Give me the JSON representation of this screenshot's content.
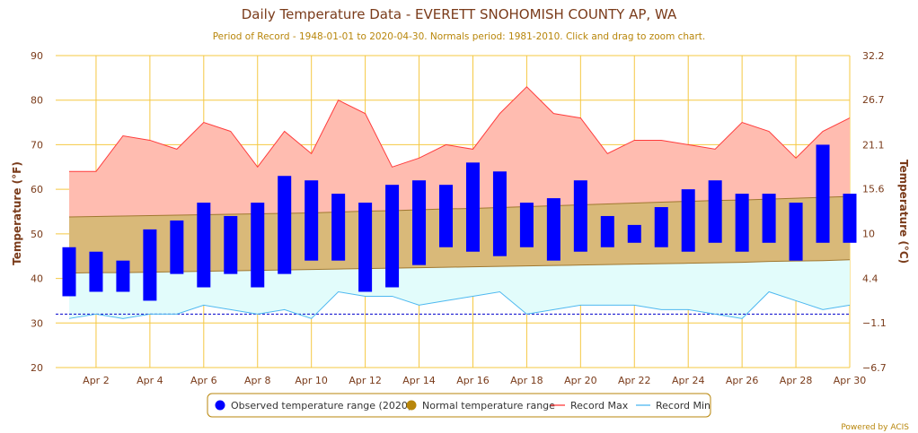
{
  "chart_data": {
    "type": "bar",
    "title": "Daily Temperature Data - EVERETT SNOHOMISH COUNTY AP, WA",
    "subtitle": "Period of Record - 1948-01-01 to 2020-04-30. Normals period: 1981-2010. Click and drag to zoom chart.",
    "ylabel": "Temperature (°F)",
    "ylabel_right": "Temperature (°C)",
    "ylim": [
      20,
      90
    ],
    "yticks": [
      "20",
      "30",
      "40",
      "50",
      "60",
      "70",
      "80",
      "90"
    ],
    "ylim_right": [
      -6.7,
      32.2
    ],
    "yticks_right": [
      "−6.7",
      "−1.1",
      "4.4",
      "10",
      "15.6",
      "21.1",
      "26.7",
      "32.2"
    ],
    "xlim": [
      0.5,
      30
    ],
    "days": [
      1,
      2,
      3,
      4,
      5,
      6,
      7,
      8,
      9,
      10,
      11,
      12,
      13,
      14,
      15,
      16,
      17,
      18,
      19,
      20,
      21,
      22,
      23,
      24,
      25,
      26,
      27,
      28,
      29,
      30
    ],
    "xtick_days": [
      2,
      4,
      6,
      8,
      10,
      12,
      14,
      16,
      18,
      20,
      22,
      24,
      26,
      28,
      30
    ],
    "xticks": [
      "Apr 2",
      "Apr 4",
      "Apr 6",
      "Apr 8",
      "Apr 10",
      "Apr 12",
      "Apr 14",
      "Apr 16",
      "Apr 18",
      "Apr 20",
      "Apr 22",
      "Apr 24",
      "Apr 26",
      "Apr 28",
      "Apr 30"
    ],
    "freezing_line": 32,
    "series": [
      {
        "name": "Observed temperature range (2020)",
        "type": "columnrange",
        "high": [
          47,
          46,
          44,
          51,
          53,
          57,
          54,
          57,
          63,
          62,
          59,
          57,
          61,
          62,
          61,
          66,
          64,
          57,
          58,
          62,
          54,
          52,
          56,
          60,
          62,
          59,
          59,
          57,
          70,
          59
        ],
        "low": [
          36,
          37,
          37,
          35,
          41,
          38,
          41,
          38,
          41,
          44,
          44,
          37,
          38,
          43,
          47,
          46,
          45,
          47,
          44,
          46,
          47,
          48,
          47,
          46,
          48,
          46,
          48,
          44,
          48,
          48
        ]
      },
      {
        "name": "Normal temperature range",
        "type": "arearange",
        "high": [
          53.8,
          53.9,
          54.0,
          54.1,
          54.2,
          54.3,
          54.4,
          54.5,
          54.6,
          54.7,
          54.9,
          55.1,
          55.2,
          55.4,
          55.6,
          55.7,
          55.9,
          56.1,
          56.3,
          56.5,
          56.7,
          56.9,
          57.1,
          57.3,
          57.5,
          57.6,
          57.8,
          58.0,
          58.2,
          58.4
        ],
        "low": [
          41.2,
          41.3,
          41.3,
          41.4,
          41.5,
          41.6,
          41.7,
          41.8,
          41.9,
          42.0,
          42.1,
          42.2,
          42.3,
          42.4,
          42.5,
          42.6,
          42.7,
          42.8,
          42.9,
          43.0,
          43.1,
          43.2,
          43.3,
          43.4,
          43.5,
          43.6,
          43.8,
          43.9,
          44.0,
          44.2
        ]
      },
      {
        "name": "Record Max",
        "type": "line",
        "values": [
          64,
          64,
          72,
          71,
          69,
          75,
          73,
          65,
          73,
          68,
          80,
          77,
          65,
          67,
          70,
          69,
          77,
          83,
          77,
          76,
          68,
          71,
          71,
          70,
          69,
          75,
          73,
          67,
          73,
          76
        ]
      },
      {
        "name": "Record Min",
        "type": "line",
        "values": [
          31,
          32,
          31,
          32,
          32,
          34,
          33,
          32,
          33,
          31,
          37,
          36,
          36,
          34,
          35,
          36,
          37,
          32,
          33,
          34,
          34,
          34,
          33,
          33,
          32,
          31,
          37,
          35,
          33,
          34
        ]
      }
    ],
    "legend": [
      {
        "name": "Observed temperature range (2020)",
        "symbol": "dot",
        "color": "#0000ff"
      },
      {
        "name": "Normal temperature range",
        "symbol": "dot",
        "color": "#b8860b"
      },
      {
        "name": "Record Max",
        "symbol": "line",
        "color": "#ff4444"
      },
      {
        "name": "Record Min",
        "symbol": "line",
        "color": "#44aaee"
      }
    ],
    "colors": {
      "observed": "#0000ff",
      "normal_fill": "#d9b979",
      "normal_line": "#a07830",
      "record_max_line": "#ff3b3b",
      "record_max_fill": "#ffbcb0",
      "record_min_line": "#4db8f0",
      "record_min_fill": "#e2fcfb",
      "grid": "#f5c842",
      "freezing": "#0000cc"
    },
    "credits": "Powered by ACIS"
  }
}
